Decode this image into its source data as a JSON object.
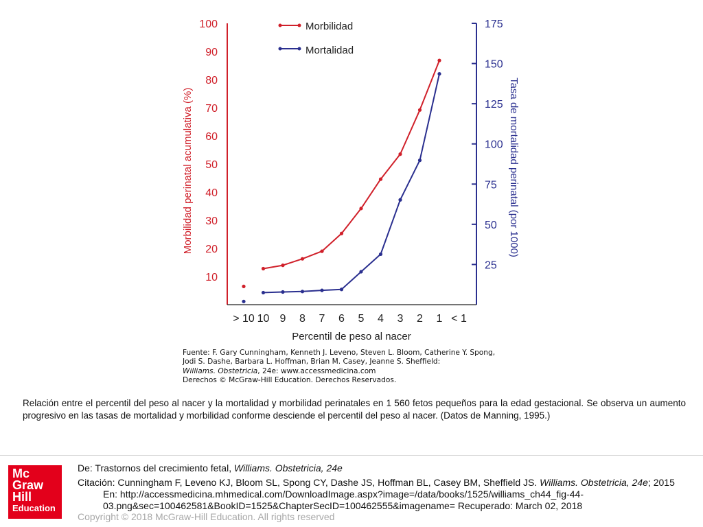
{
  "chart_data": {
    "type": "line",
    "x_categories": [
      "> 10",
      "10",
      "9",
      "8",
      "7",
      "6",
      "5",
      "4",
      "3",
      "2",
      "1",
      "< 1"
    ],
    "xlabel": "Percentil de peso al nacer",
    "ylabel_left": "Morbilidad perinatal acumulativa (%)",
    "ylabel_right": "Tasa de mortalidad perinatal (por 1000)",
    "ylim_left": [
      0,
      100
    ],
    "ylim_right": [
      0,
      175
    ],
    "yticks_left": [
      "100",
      "90",
      "80",
      "70",
      "60",
      "50",
      "40",
      "30",
      "20",
      "10"
    ],
    "yticks_right": [
      "175",
      "150",
      "125",
      "100",
      "75",
      "50",
      "25"
    ],
    "legend_position": "top-left",
    "grid": false,
    "series": [
      {
        "name": "Morbilidad",
        "axis": "left",
        "color": "#d0202a",
        "isolated_point": {
          "x": "> 10",
          "y": 6.5
        },
        "points": [
          {
            "x": "10",
            "y": 12.8
          },
          {
            "x": "9",
            "y": 14.0
          },
          {
            "x": "8",
            "y": 16.3
          },
          {
            "x": "7",
            "y": 19.0
          },
          {
            "x": "6",
            "y": 25.3
          },
          {
            "x": "5",
            "y": 34.2
          },
          {
            "x": "4",
            "y": 44.6
          },
          {
            "x": "3",
            "y": 53.5
          },
          {
            "x": "2",
            "y": 69.2
          },
          {
            "x": "1",
            "y": 86.8
          }
        ]
      },
      {
        "name": "Mortalidad",
        "axis": "right",
        "color": "#2a2f8f",
        "isolated_point": {
          "x": "> 10",
          "y": 2
        },
        "points": [
          {
            "x": "10",
            "y": 7.5
          },
          {
            "x": "9",
            "y": 7.9
          },
          {
            "x": "8",
            "y": 8.2
          },
          {
            "x": "7",
            "y": 8.9
          },
          {
            "x": "6",
            "y": 9.5
          },
          {
            "x": "5",
            "y": 20.5
          },
          {
            "x": "4",
            "y": 31.4
          },
          {
            "x": "3",
            "y": 65.2
          },
          {
            "x": "2",
            "y": 89.8
          },
          {
            "x": "1",
            "y": 143.6
          }
        ]
      }
    ]
  },
  "source_box": {
    "line1": "Fuente: F. Gary Cunningham, Kenneth J. Leveno, Steven L. Bloom, Catherine Y. Spong,",
    "line2": "Jodi S. Dashe, Barbara L. Hoffman, Brian M. Casey, Jeanne S. Sheffield:",
    "line3_italic": "Williams. Obstetricia",
    "line3_rest": ", 24e: www.accessmedicina.com",
    "line4": "Derechos © McGraw-Hill Education. Derechos Reservados."
  },
  "caption": "Relación entre el percentil del peso al nacer y la mortalidad y morbilidad perinatales en 1 560 fetos pequeños para la edad gestacional. Se observa un aumento progresivo en las tasas de mortalidad y morbilidad conforme desciende el percentil del peso al nacer. (Datos de Manning, 1995.)",
  "logo": {
    "line1": "Mc",
    "line2": "Graw",
    "line3": "Hill",
    "line4": "Education"
  },
  "footer": {
    "from_prefix": "De: Trastornos del crecimiento fetal, ",
    "from_book": "Williams. Obstetricia, 24e",
    "citation_prefix": "Citación: Cunningham F, Leveno KJ, Bloom SL, Spong CY, Dashe JS, Hoffman BL, Casey BM, Sheffield JS. ",
    "citation_book": "Williams. Obstetricia, 24e",
    "citation_suffix": "; 2015",
    "citation_line2": "En: http://accessmedicina.mhmedical.com/DownloadImage.aspx?image=/data/books/1525/williams_ch44_fig-44-",
    "citation_line3": "03.png&sec=100462581&BookID=1525&ChapterSecID=100462555&imagename= Recuperado: March 02, 2018",
    "copyright": "Copyright © 2018 McGraw-Hill Education. All rights reserved"
  }
}
